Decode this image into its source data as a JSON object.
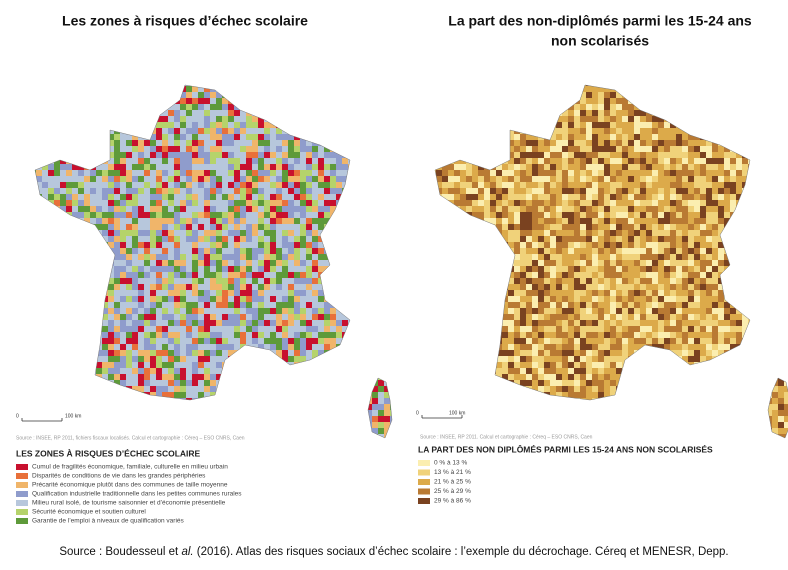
{
  "left_map": {
    "title": "Les zones à risques d’échec scolaire",
    "scale": {
      "zero": "0",
      "length": "100 km"
    },
    "source": "Source : INSEE, RP 2011, fichiers fiscaux localisés. Calcul et cartographie : Céreq – ESO CNRS, Caen",
    "legend": {
      "title": "LES ZONES À RISQUES D’ÉCHEC SCOLAIRE",
      "items": [
        {
          "label": "Cumul de fragilités économique, familiale, culturelle en milieu urbain",
          "color": "#c8102e"
        },
        {
          "label": "Disparités de conditions de vie dans les grandes périphéries",
          "color": "#e8703a"
        },
        {
          "label": "Précarité économique plutôt dans des communes de taille moyenne",
          "color": "#f0b56a"
        },
        {
          "label": "Qualification industrielle traditionnelle dans les petites communes rurales",
          "color": "#8f9ccc"
        },
        {
          "label": "Milieu rural isolé, de tourisme saisonnier et d’économie présentielle",
          "color": "#b7c7dc"
        },
        {
          "label": "Sécurité économique et soutien culturel",
          "color": "#b5d36b"
        },
        {
          "label": "Garantie de l’emploi à niveaux de qualification variés",
          "color": "#5e9a3a"
        }
      ]
    }
  },
  "right_map": {
    "title": [
      "La part des non-diplômés parmi les 15-24 ans",
      "non scolarisés"
    ],
    "scale": {
      "zero": "0",
      "length": "100 km"
    },
    "source": "Source : INSEE, RP 2011. Calcul et cartographie : Céreq – ESO CNRS, Caen",
    "legend": {
      "title": "LA PART DES NON DIPLÔMÉS PARMI LES 15-24 ANS NON SCOLARISÉS",
      "items": [
        {
          "label": "0 % à 13 %",
          "color": "#fbeeb0"
        },
        {
          "label": "13 % à 21 %",
          "color": "#f0d27a"
        },
        {
          "label": "21 % à 25 %",
          "color": "#dcaa4a"
        },
        {
          "label": "25 % à 29 %",
          "color": "#b97a33"
        },
        {
          "label": "29 % à 86 %",
          "color": "#7a4220"
        }
      ]
    }
  },
  "footer": {
    "before": "Source : Boudesseul et ",
    "italic": "al.",
    "after": " (2016). Atlas des risques sociaux d’échec scolaire : l’exemple du décrochage. Céreq et MENESR, Depp."
  }
}
